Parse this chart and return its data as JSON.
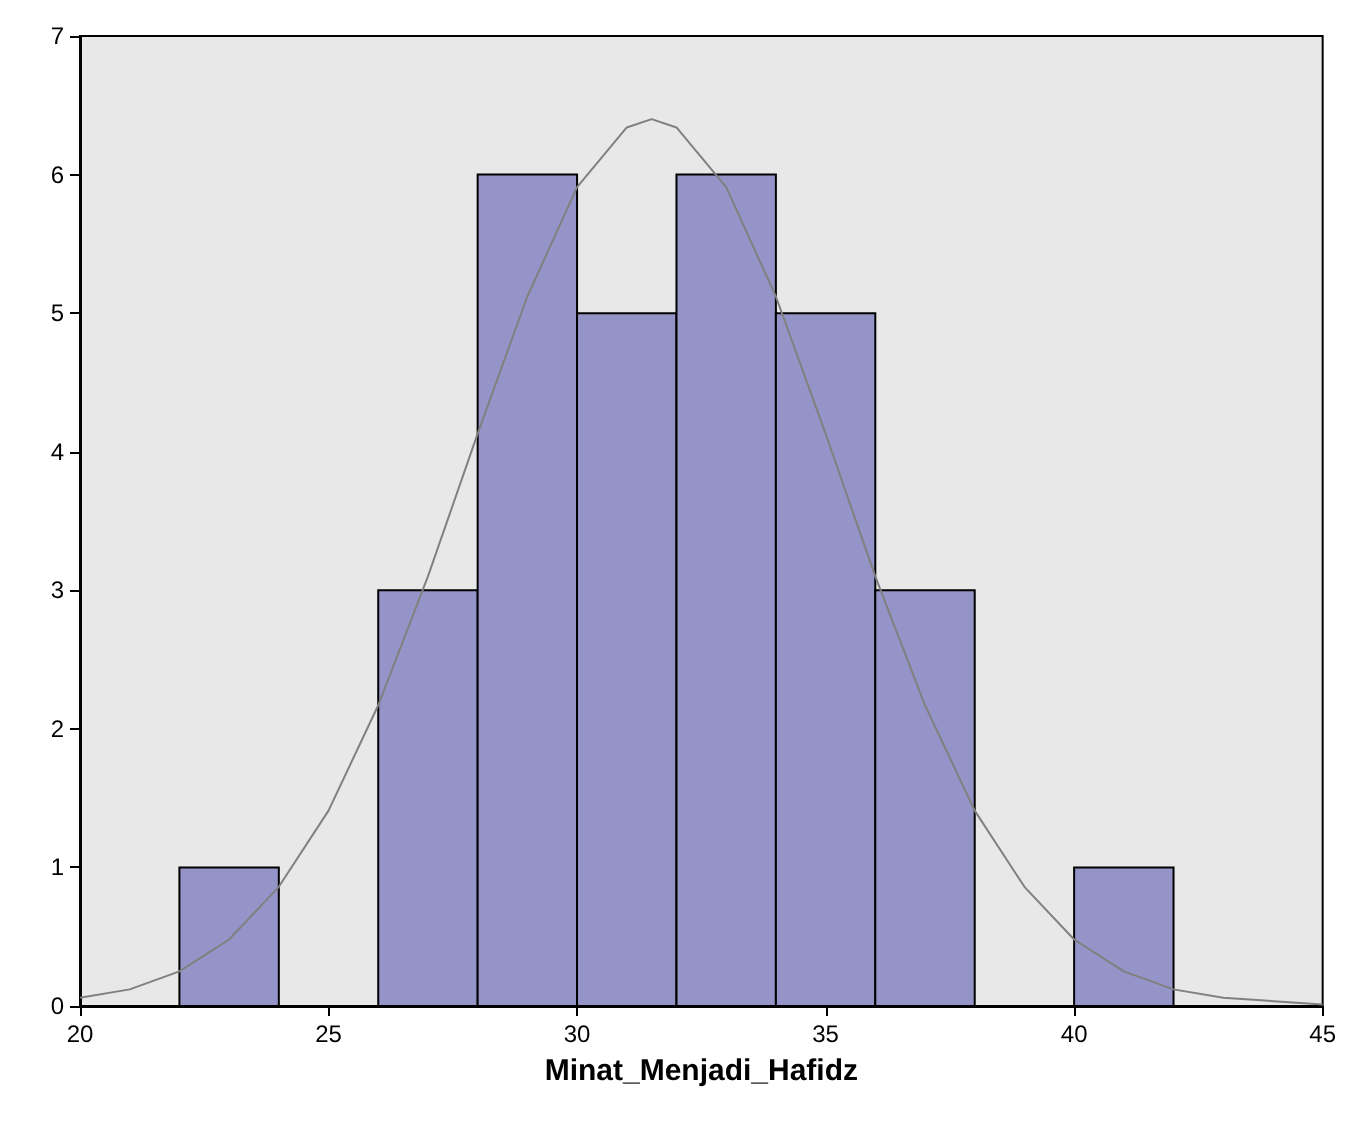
{
  "chart_data": {
    "type": "histogram",
    "xlabel": "Minat_Menjadi_Hafidz",
    "bins": [
      22,
      24,
      26,
      28,
      30,
      32,
      34,
      36,
      38,
      40,
      42
    ],
    "values": [
      1,
      0,
      3,
      6,
      5,
      6,
      5,
      3,
      0,
      1
    ],
    "color": "#9494c8",
    "xlim": [
      20,
      45
    ],
    "xticks": [
      20,
      25,
      30,
      35,
      40,
      45
    ],
    "ylim": [
      0,
      7
    ],
    "yticks": [
      0,
      1,
      2,
      3,
      4,
      5,
      6,
      7
    ],
    "grid": false,
    "series": [
      {
        "type": "line",
        "color": "#808080",
        "marker": "none",
        "x": [
          20,
          21,
          22,
          23,
          24,
          25,
          26,
          27,
          28,
          29,
          30,
          31,
          31.5,
          32,
          33,
          34,
          35,
          36,
          37,
          38,
          39,
          40,
          41,
          42,
          43,
          45
        ],
        "values": [
          0.06,
          0.12,
          0.25,
          0.48,
          0.86,
          1.41,
          2.17,
          3.1,
          4.13,
          5.12,
          5.91,
          6.34,
          6.4,
          6.34,
          5.91,
          5.12,
          4.13,
          3.1,
          2.17,
          1.41,
          0.86,
          0.48,
          0.25,
          0.12,
          0.06,
          0.01
        ]
      }
    ]
  }
}
